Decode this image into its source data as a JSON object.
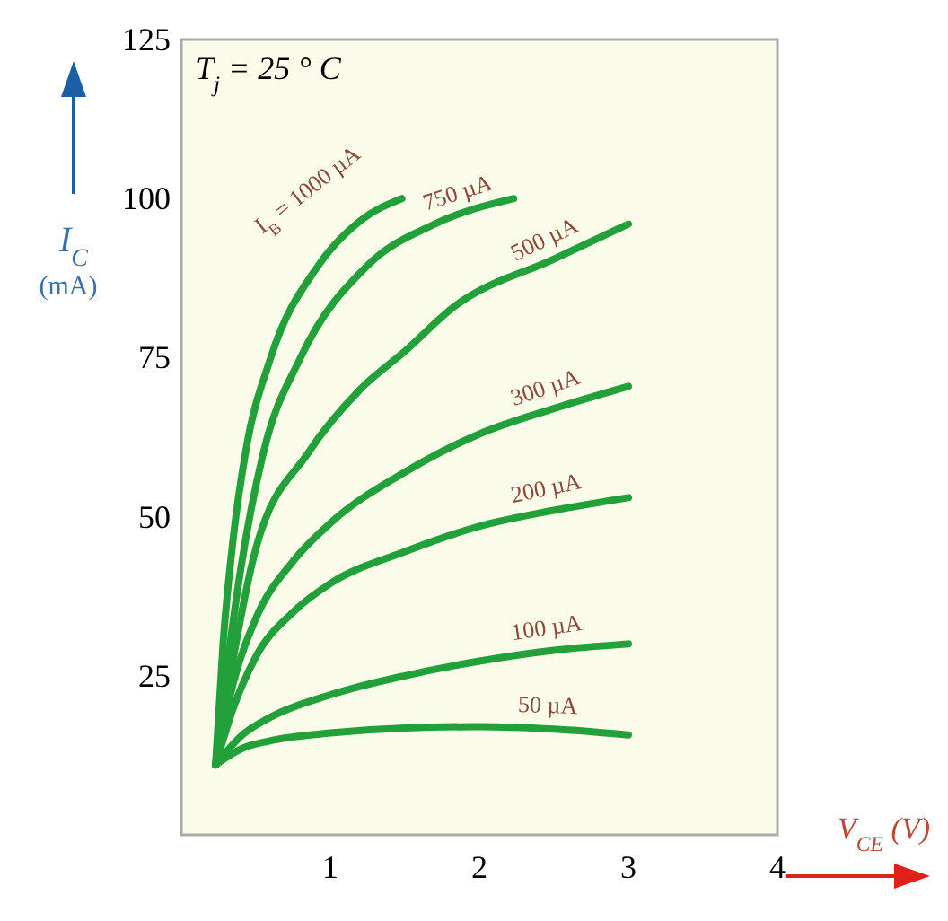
{
  "chart_data": {
    "type": "line",
    "xlabel": "V$_{CE}$ (V)",
    "ylabel": "I$_{C}$ (mA)",
    "annotations": [
      "T$_{j}$ = 25 ° C"
    ],
    "xlim": [
      0,
      4
    ],
    "ylim": [
      0,
      125
    ],
    "xticks": [
      1,
      2,
      3,
      4
    ],
    "yticks": [
      25,
      50,
      75,
      100,
      125
    ],
    "grid": false,
    "marker": "none",
    "line_style": "solid",
    "series": [
      {
        "name": "I$_{B}$ = 1000 µA",
        "color": "#22a03a",
        "x": [
          0.23,
          0.28,
          0.35,
          0.43,
          0.6,
          0.92,
          1.2,
          1.48
        ],
        "values": [
          11,
          30,
          47,
          60,
          75,
          89.5,
          96.5,
          100
        ]
      },
      {
        "name": "750 µA",
        "color": "#22a03a",
        "x": [
          0.23,
          0.3,
          0.4,
          0.55,
          0.8,
          1.25,
          1.7,
          2.23
        ],
        "values": [
          11,
          25,
          42,
          60,
          75,
          89.5,
          96,
          100
        ]
      },
      {
        "name": "500 µA",
        "color": "#22a03a",
        "x": [
          0.23,
          0.35,
          0.5,
          0.85,
          1.2,
          1.5,
          1.83,
          2.5,
          3
        ],
        "values": [
          11,
          28,
          45,
          60,
          70,
          76,
          83,
          90.5,
          96
        ]
      },
      {
        "name": "300 µA",
        "color": "#22a03a",
        "x": [
          0.23,
          0.35,
          0.5,
          0.75,
          1,
          1.5,
          2,
          2.5,
          3
        ],
        "values": [
          11,
          24,
          34,
          43,
          49,
          57,
          63,
          67,
          70.5
        ]
      },
      {
        "name": "200 µA",
        "color": "#22a03a",
        "x": [
          0.23,
          0.35,
          0.5,
          0.75,
          1,
          1.5,
          2,
          2.5,
          3
        ],
        "values": [
          11,
          20,
          28,
          35,
          39.5,
          44.5,
          48.5,
          51,
          53
        ]
      },
      {
        "name": "100 µA",
        "color": "#22a03a",
        "x": [
          0.23,
          0.4,
          0.6,
          1,
          1.5,
          2,
          2.5,
          3
        ],
        "values": [
          11,
          15.5,
          18.5,
          22,
          25,
          27.3,
          29,
          30
        ]
      },
      {
        "name": "50 µA",
        "color": "#22a03a",
        "x": [
          0.23,
          0.4,
          0.6,
          1,
          1.5,
          2,
          2.5,
          3
        ],
        "values": [
          11,
          13.5,
          14.8,
          16,
          16.8,
          17,
          16.6,
          15.7
        ]
      }
    ]
  }
}
